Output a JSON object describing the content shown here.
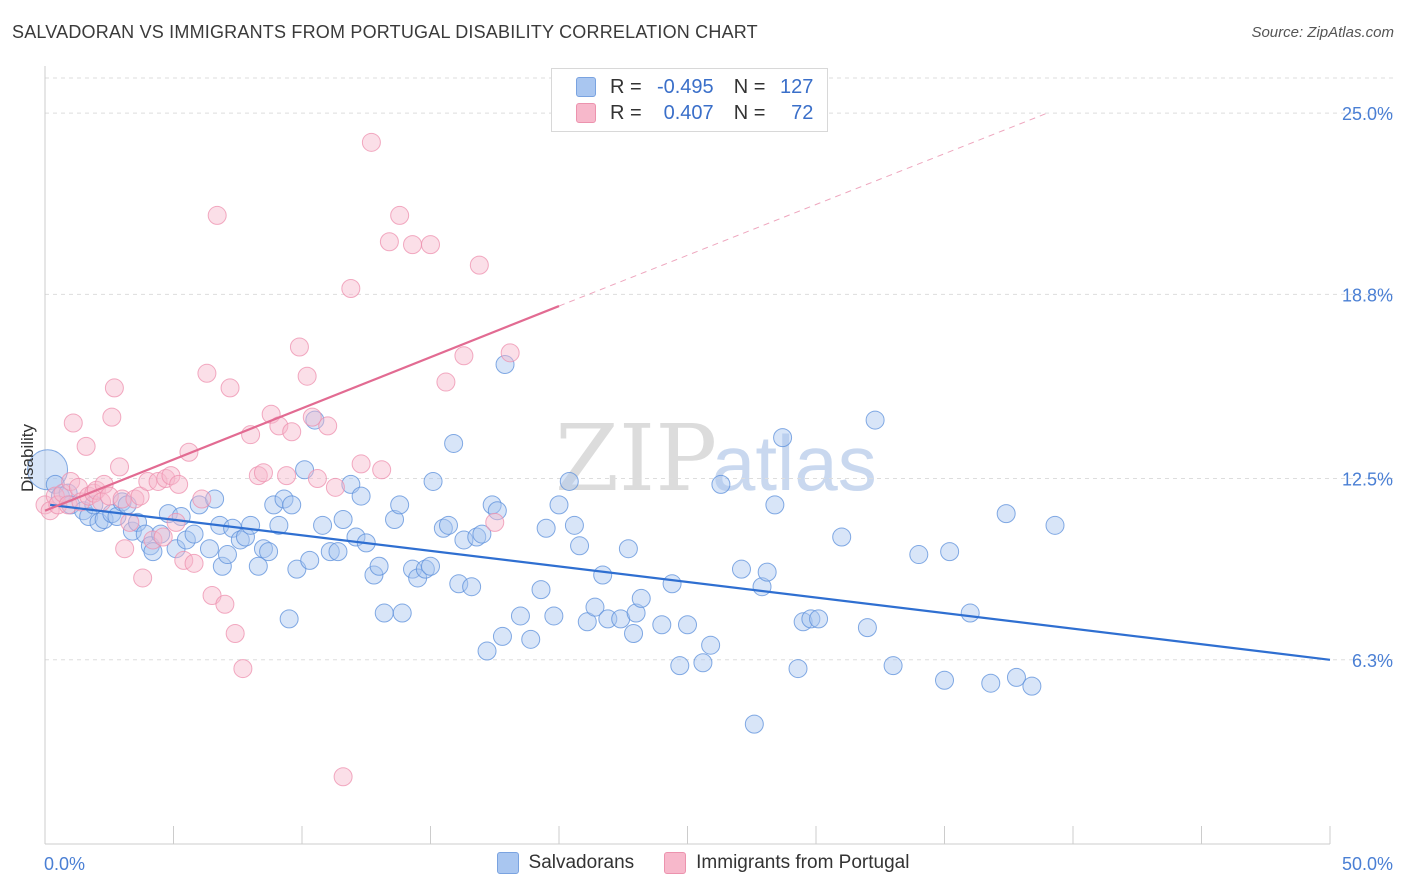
{
  "header": {
    "title": "SALVADORAN VS IMMIGRANTS FROM PORTUGAL DISABILITY CORRELATION CHART",
    "source": "Source: ZipAtlas.com"
  },
  "legend": {
    "rows": [
      {
        "r_label": "R =",
        "r_value": "-0.495",
        "n_label": "N =",
        "n_value": "127",
        "color": "#a9c6f0"
      },
      {
        "r_label": "R =",
        "r_value": "0.407",
        "n_label": "N =",
        "n_value": "72",
        "color": "#f7b8cb"
      }
    ]
  },
  "bottom_legend": {
    "items": [
      {
        "label": "Salvadorans",
        "color": "#a9c6f0"
      },
      {
        "label": "Immigrants from Portugal",
        "color": "#f7b8cb"
      }
    ]
  },
  "watermark": {
    "zip": "ZIP",
    "atlas": "atlas"
  },
  "chart_data": {
    "type": "scatter",
    "title": "SALVADORAN VS IMMIGRANTS FROM PORTUGAL DISABILITY CORRELATION CHART",
    "xlabel": "",
    "ylabel": "Disability",
    "xlim": [
      0,
      50
    ],
    "ylim": [
      0,
      26.2
    ],
    "x_tick_labels": [
      "0.0%",
      "50.0%"
    ],
    "y_ticks": [
      6.3,
      12.5,
      18.8,
      25.0
    ],
    "y_tick_labels": [
      "6.3%",
      "12.5%",
      "18.8%",
      "25.0%"
    ],
    "grid": true,
    "legend_placement": "top-center",
    "colors": {
      "blue_fill": "#a9c6f0",
      "blue_line": "#2f6fd1",
      "pink_fill": "#f7b8cb",
      "pink_line": "#e26b92",
      "axis_text": "#4a7fd4"
    },
    "series": [
      {
        "name": "Salvadorans",
        "color": "#5b8fdb",
        "trend": {
          "x": [
            0.2,
            50
          ],
          "y": [
            11.6,
            6.3
          ]
        },
        "points": [
          [
            0.1,
            12.8
          ],
          [
            0.4,
            12.3
          ],
          [
            0.6,
            11.9
          ],
          [
            0.9,
            12.0
          ],
          [
            1.0,
            11.6
          ],
          [
            1.5,
            11.4
          ],
          [
            1.7,
            11.2
          ],
          [
            1.9,
            11.6
          ],
          [
            2.1,
            11.0
          ],
          [
            2.3,
            11.1
          ],
          [
            2.6,
            11.3
          ],
          [
            2.8,
            11.2
          ],
          [
            3.0,
            11.7
          ],
          [
            3.2,
            11.6
          ],
          [
            3.4,
            10.7
          ],
          [
            3.6,
            11.0
          ],
          [
            3.9,
            10.6
          ],
          [
            4.1,
            10.2
          ],
          [
            4.2,
            10.0
          ],
          [
            4.5,
            10.6
          ],
          [
            4.8,
            11.3
          ],
          [
            5.1,
            10.1
          ],
          [
            5.3,
            11.2
          ],
          [
            5.5,
            10.4
          ],
          [
            5.8,
            10.6
          ],
          [
            6.0,
            11.6
          ],
          [
            6.4,
            10.1
          ],
          [
            6.6,
            11.8
          ],
          [
            6.8,
            10.9
          ],
          [
            6.9,
            9.5
          ],
          [
            7.1,
            9.9
          ],
          [
            7.3,
            10.8
          ],
          [
            7.6,
            10.4
          ],
          [
            7.8,
            10.5
          ],
          [
            8.0,
            10.9
          ],
          [
            8.3,
            9.5
          ],
          [
            8.5,
            10.1
          ],
          [
            8.7,
            10.0
          ],
          [
            8.9,
            11.6
          ],
          [
            9.1,
            10.9
          ],
          [
            9.3,
            11.8
          ],
          [
            9.5,
            7.7
          ],
          [
            9.6,
            11.6
          ],
          [
            9.8,
            9.4
          ],
          [
            10.1,
            12.8
          ],
          [
            10.3,
            9.7
          ],
          [
            10.5,
            14.5
          ],
          [
            10.8,
            10.9
          ],
          [
            11.1,
            10.0
          ],
          [
            11.4,
            10.0
          ],
          [
            11.6,
            11.1
          ],
          [
            11.9,
            12.3
          ],
          [
            12.1,
            10.5
          ],
          [
            12.3,
            11.9
          ],
          [
            12.5,
            10.3
          ],
          [
            12.8,
            9.2
          ],
          [
            13.0,
            9.5
          ],
          [
            13.2,
            7.9
          ],
          [
            13.6,
            11.1
          ],
          [
            13.8,
            11.6
          ],
          [
            13.9,
            7.9
          ],
          [
            14.3,
            9.4
          ],
          [
            14.5,
            9.1
          ],
          [
            14.8,
            9.4
          ],
          [
            15.0,
            9.5
          ],
          [
            15.1,
            12.4
          ],
          [
            15.5,
            10.8
          ],
          [
            15.7,
            10.9
          ],
          [
            15.9,
            13.7
          ],
          [
            16.1,
            8.9
          ],
          [
            16.3,
            10.4
          ],
          [
            16.6,
            8.8
          ],
          [
            16.8,
            10.5
          ],
          [
            17.0,
            10.6
          ],
          [
            17.2,
            6.6
          ],
          [
            17.4,
            11.6
          ],
          [
            17.6,
            11.4
          ],
          [
            17.8,
            7.1
          ],
          [
            17.9,
            16.4
          ],
          [
            18.5,
            7.8
          ],
          [
            18.9,
            7.0
          ],
          [
            19.3,
            8.7
          ],
          [
            19.5,
            10.8
          ],
          [
            19.8,
            7.8
          ],
          [
            20.0,
            11.6
          ],
          [
            20.4,
            12.4
          ],
          [
            20.6,
            10.9
          ],
          [
            20.8,
            10.2
          ],
          [
            21.1,
            7.6
          ],
          [
            21.4,
            8.1
          ],
          [
            21.7,
            9.2
          ],
          [
            21.9,
            7.7
          ],
          [
            22.4,
            7.7
          ],
          [
            22.7,
            10.1
          ],
          [
            22.9,
            7.2
          ],
          [
            23.0,
            7.9
          ],
          [
            23.2,
            8.4
          ],
          [
            24.0,
            7.5
          ],
          [
            24.4,
            8.9
          ],
          [
            24.7,
            6.1
          ],
          [
            25.0,
            7.5
          ],
          [
            25.6,
            6.2
          ],
          [
            25.9,
            6.8
          ],
          [
            26.3,
            12.3
          ],
          [
            27.1,
            9.4
          ],
          [
            27.6,
            4.1
          ],
          [
            27.9,
            8.8
          ],
          [
            28.1,
            9.3
          ],
          [
            28.4,
            11.6
          ],
          [
            28.7,
            13.9
          ],
          [
            29.3,
            6.0
          ],
          [
            29.5,
            7.6
          ],
          [
            29.8,
            7.7
          ],
          [
            30.1,
            7.7
          ],
          [
            31.0,
            10.5
          ],
          [
            32.0,
            7.4
          ],
          [
            32.3,
            14.5
          ],
          [
            33.0,
            6.1
          ],
          [
            34.0,
            9.9
          ],
          [
            35.0,
            5.6
          ],
          [
            35.2,
            10.0
          ],
          [
            36.0,
            7.9
          ],
          [
            36.8,
            5.5
          ],
          [
            37.4,
            11.3
          ],
          [
            37.8,
            5.7
          ],
          [
            38.4,
            5.4
          ],
          [
            39.3,
            10.9
          ]
        ]
      },
      {
        "name": "Immigrants from Portugal",
        "color": "#ee8fae",
        "trend": {
          "x": [
            0.0,
            20.0
          ],
          "y": [
            11.4,
            18.4
          ]
        },
        "trend_dashed": {
          "x": [
            20.0,
            39.0
          ],
          "y": [
            18.4,
            25.0
          ]
        },
        "points": [
          [
            0.0,
            11.6
          ],
          [
            0.2,
            11.4
          ],
          [
            0.4,
            11.9
          ],
          [
            0.5,
            11.6
          ],
          [
            0.7,
            12.0
          ],
          [
            0.9,
            11.6
          ],
          [
            1.0,
            12.4
          ],
          [
            1.1,
            14.4
          ],
          [
            1.3,
            12.2
          ],
          [
            1.4,
            11.7
          ],
          [
            1.6,
            13.6
          ],
          [
            1.7,
            11.9
          ],
          [
            1.9,
            12.0
          ],
          [
            2.0,
            12.1
          ],
          [
            2.2,
            11.7
          ],
          [
            2.3,
            12.3
          ],
          [
            2.5,
            11.9
          ],
          [
            2.6,
            14.6
          ],
          [
            2.7,
            15.6
          ],
          [
            2.9,
            12.9
          ],
          [
            3.0,
            11.8
          ],
          [
            3.1,
            10.1
          ],
          [
            3.3,
            11.0
          ],
          [
            3.5,
            11.8
          ],
          [
            3.7,
            11.9
          ],
          [
            3.8,
            9.1
          ],
          [
            4.0,
            12.4
          ],
          [
            4.2,
            10.4
          ],
          [
            4.4,
            12.4
          ],
          [
            4.6,
            10.5
          ],
          [
            4.7,
            12.5
          ],
          [
            4.9,
            12.6
          ],
          [
            5.1,
            11.0
          ],
          [
            5.2,
            12.3
          ],
          [
            5.4,
            9.7
          ],
          [
            5.6,
            13.4
          ],
          [
            5.8,
            9.6
          ],
          [
            6.1,
            11.8
          ],
          [
            6.3,
            16.1
          ],
          [
            6.5,
            8.5
          ],
          [
            6.7,
            21.5
          ],
          [
            7.0,
            8.2
          ],
          [
            7.2,
            15.6
          ],
          [
            7.4,
            7.2
          ],
          [
            7.7,
            6.0
          ],
          [
            8.0,
            14.0
          ],
          [
            8.3,
            12.6
          ],
          [
            8.5,
            12.7
          ],
          [
            8.8,
            14.7
          ],
          [
            9.1,
            14.3
          ],
          [
            9.4,
            12.6
          ],
          [
            9.6,
            14.1
          ],
          [
            9.9,
            17.0
          ],
          [
            10.2,
            16.0
          ],
          [
            10.4,
            14.6
          ],
          [
            10.6,
            12.5
          ],
          [
            11.0,
            14.3
          ],
          [
            11.3,
            12.2
          ],
          [
            11.6,
            2.3
          ],
          [
            11.9,
            19.0
          ],
          [
            12.3,
            13.0
          ],
          [
            12.7,
            24.0
          ],
          [
            13.1,
            12.8
          ],
          [
            13.4,
            20.6
          ],
          [
            13.8,
            21.5
          ],
          [
            14.3,
            20.5
          ],
          [
            15.0,
            20.5
          ],
          [
            15.6,
            15.8
          ],
          [
            16.3,
            16.7
          ],
          [
            16.9,
            19.8
          ],
          [
            17.5,
            11.0
          ],
          [
            18.1,
            16.8
          ]
        ]
      }
    ]
  }
}
